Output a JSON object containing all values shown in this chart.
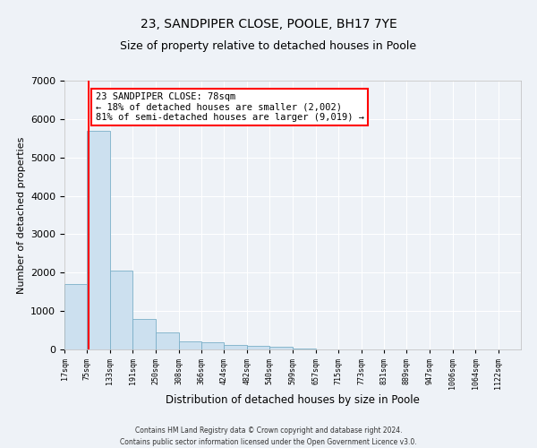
{
  "title1": "23, SANDPIPER CLOSE, POOLE, BH17 7YE",
  "title2": "Size of property relative to detached houses in Poole",
  "xlabel": "Distribution of detached houses by size in Poole",
  "ylabel": "Number of detached properties",
  "bar_color": "#cce0ef",
  "bar_edge_color": "#7aafc8",
  "bins": [
    17,
    75,
    133,
    191,
    250,
    308,
    366,
    424,
    482,
    540,
    599,
    657,
    715,
    773,
    831,
    889,
    947,
    1006,
    1064,
    1122,
    1180
  ],
  "values": [
    1700,
    5700,
    2050,
    800,
    450,
    210,
    180,
    110,
    90,
    70,
    25,
    10,
    5,
    0,
    0,
    0,
    0,
    0,
    0,
    0
  ],
  "property_size": 78,
  "annotation_text": "23 SANDPIPER CLOSE: 78sqm\n← 18% of detached houses are smaller (2,002)\n81% of semi-detached houses are larger (9,019) →",
  "annotation_box_color": "white",
  "annotation_box_edge_color": "red",
  "vline_x": 78,
  "vline_color": "red",
  "footer_line1": "Contains HM Land Registry data © Crown copyright and database right 2024.",
  "footer_line2": "Contains public sector information licensed under the Open Government Licence v3.0.",
  "ylim": [
    0,
    7000
  ],
  "yticks": [
    0,
    1000,
    2000,
    3000,
    4000,
    5000,
    6000,
    7000
  ],
  "xlim_left": 17,
  "xlim_right": 1180,
  "background_color": "#eef2f7",
  "grid_color": "white",
  "title1_fontsize": 10,
  "title2_fontsize": 9,
  "annotation_fontsize": 7.5,
  "xlabel_fontsize": 8.5,
  "ylabel_fontsize": 8,
  "ytick_fontsize": 8,
  "xtick_fontsize": 6
}
